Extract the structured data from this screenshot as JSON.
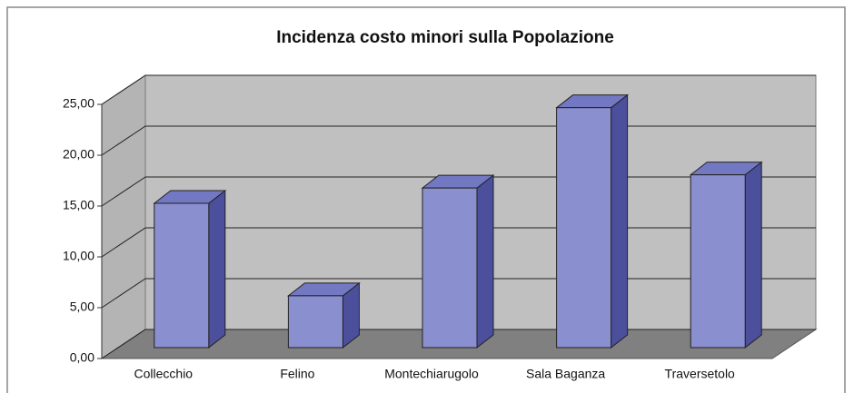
{
  "chart_data": {
    "type": "bar3d",
    "title": "Incidenza costo minori sulla Popolazione",
    "categories": [
      "Collecchio",
      "Felino",
      "Montechiarugolo",
      "Sala Baganza",
      "Traversetolo"
    ],
    "values": [
      14.2,
      5.1,
      15.7,
      23.6,
      17.0
    ],
    "color": "#8a8fd0",
    "ylim": [
      0,
      25
    ],
    "yticks": [
      {
        "value": 0,
        "label": "0,00"
      },
      {
        "value": 5,
        "label": "5,00"
      },
      {
        "value": 10,
        "label": "10,00"
      },
      {
        "value": 15,
        "label": "15,00"
      },
      {
        "value": 20,
        "label": "20,00"
      },
      {
        "value": 25,
        "label": "25,00"
      }
    ],
    "grid": true
  }
}
